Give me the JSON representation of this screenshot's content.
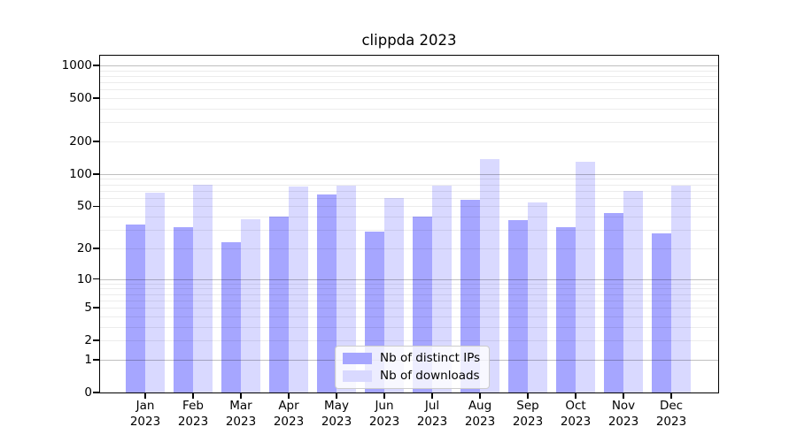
{
  "title": "clippda 2023",
  "colors": {
    "background": "#ffffff",
    "axis": "#000000",
    "grid_major": "#bfbfbf",
    "grid_minor": "#ececec",
    "series_distinct_ips": "#a6a6ff",
    "series_downloads": "#d9d9ff",
    "legend_border": "#cccccc",
    "legend_background": "#fcfcfc"
  },
  "y_axis": {
    "tick_labels": [
      "1000",
      "500",
      "200",
      "100",
      "50",
      "20",
      "10",
      "5",
      "2",
      "1",
      "0"
    ]
  },
  "x_axis": {
    "tick_labels": [
      "Jan 2023",
      "Feb 2023",
      "Mar 2023",
      "Apr 2023",
      "May 2023",
      "Jun 2023",
      "Jul 2023",
      "Aug 2023",
      "Sep 2023",
      "Oct 2023",
      "Nov 2023",
      "Dec 2023"
    ]
  },
  "legend": {
    "items": [
      "Nb of distinct IPs",
      "Nb of downloads"
    ]
  },
  "chart_data": {
    "type": "bar",
    "title": "clippda 2023",
    "categories": [
      "Jan 2023",
      "Feb 2023",
      "Mar 2023",
      "Apr 2023",
      "May 2023",
      "Jun 2023",
      "Jul 2023",
      "Aug 2023",
      "Sep 2023",
      "Oct 2023",
      "Nov 2023",
      "Dec 2023"
    ],
    "series": [
      {
        "key": "distinct-ips",
        "name": "Nb of distinct IPs",
        "color": "#a6a6ff",
        "values": [
          34,
          32,
          23,
          40,
          65,
          29,
          40,
          58,
          37,
          32,
          43,
          28
        ]
      },
      {
        "key": "downloads",
        "name": "Nb of downloads",
        "color": "#d9d9ff",
        "values": [
          67,
          80,
          38,
          76,
          78,
          60,
          78,
          138,
          54,
          130,
          70,
          78
        ]
      }
    ],
    "xlabel": "",
    "ylabel": "",
    "yscale": "log1p",
    "y_ticks": [
      0,
      1,
      2,
      5,
      10,
      20,
      50,
      100,
      200,
      500,
      1000
    ],
    "ylim": [
      0,
      1230
    ],
    "grid": "horizontal major+minor",
    "legend_position": "lower center"
  }
}
